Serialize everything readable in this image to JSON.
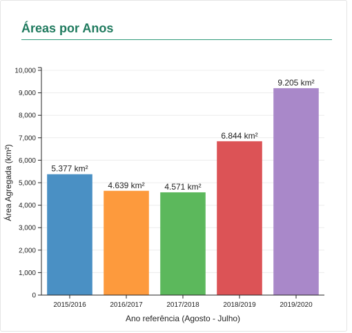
{
  "panel": {
    "title": "Áreas por Anos"
  },
  "chart_data": {
    "type": "bar",
    "title": "Áreas por Anos",
    "xlabel": "Ano referência (Agosto - Julho)",
    "ylabel": "Área Agregada (km²)",
    "ylim": [
      0,
      10000
    ],
    "yticks": [
      0,
      1000,
      2000,
      3000,
      4000,
      5000,
      6000,
      7000,
      8000,
      9000,
      10000
    ],
    "ytick_labels": [
      "0",
      "1,000",
      "2,000",
      "3,000",
      "4,000",
      "5,000",
      "6,000",
      "7,000",
      "8,000",
      "9,000",
      "10,000"
    ],
    "categories": [
      "2015/2016",
      "2016/2017",
      "2017/2018",
      "2018/2019",
      "2019/2020"
    ],
    "values": [
      5377,
      4639,
      4571,
      6844,
      9205
    ],
    "data_labels": [
      "5.377 km²",
      "4.639 km²",
      "4.571 km²",
      "6.844 km²",
      "9.205 km²"
    ],
    "colors": [
      "#4a90c4",
      "#fd9a3d",
      "#5cb85c",
      "#dc5356",
      "#a988c9"
    ],
    "grid": true,
    "legend": "none"
  }
}
